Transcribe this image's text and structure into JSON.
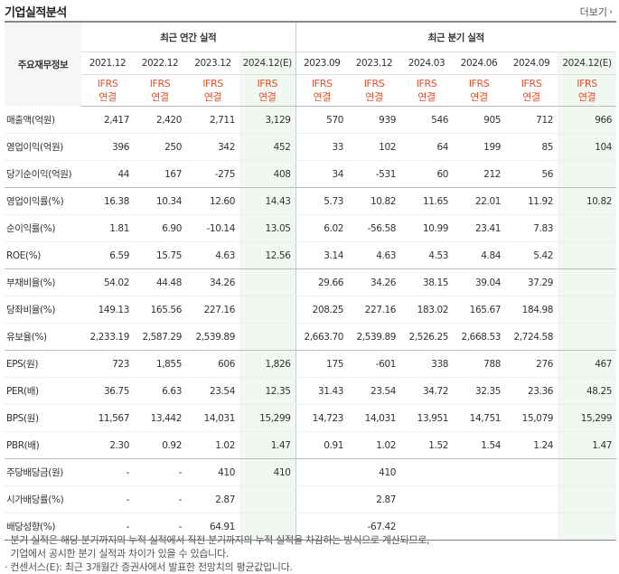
{
  "title": "기업실적분석",
  "more_label": "더보기",
  "header": {
    "row_label": "주요재무정보",
    "annual_group": "최근 연간 실적",
    "quarter_group": "최근 분기 실적",
    "annual_periods": [
      "2021.12",
      "2022.12",
      "2023.12",
      "2024.12(E)"
    ],
    "quarter_periods": [
      "2023.09",
      "2023.12",
      "2024.03",
      "2024.06",
      "2024.09",
      "2024.12(E)"
    ],
    "std_top": "IFRS",
    "std_bottom": "연결"
  },
  "rows": [
    {
      "label": "매출액(억원)",
      "values": [
        "2,417",
        "2,420",
        "2,711",
        "3,129",
        "570",
        "939",
        "546",
        "905",
        "712",
        "966"
      ]
    },
    {
      "label": "영업이익(억원)",
      "values": [
        "396",
        "250",
        "342",
        "452",
        "33",
        "102",
        "64",
        "199",
        "85",
        "104"
      ]
    },
    {
      "label": "당기순이익(억원)",
      "values": [
        "44",
        "167",
        "-275",
        "408",
        "34",
        "-531",
        "60",
        "212",
        "56",
        ""
      ]
    },
    {
      "label": "영업이익률(%)",
      "values": [
        "16.38",
        "10.34",
        "12.60",
        "14.43",
        "5.73",
        "10.82",
        "11.65",
        "22.01",
        "11.92",
        "10.82"
      ]
    },
    {
      "label": "순이익률(%)",
      "values": [
        "1.81",
        "6.90",
        "-10.14",
        "13.05",
        "6.02",
        "-56.58",
        "10.99",
        "23.41",
        "7.83",
        ""
      ]
    },
    {
      "label": "ROE(%)",
      "values": [
        "6.59",
        "15.75",
        "4.63",
        "12.56",
        "3.14",
        "4.63",
        "4.53",
        "4.84",
        "5.42",
        ""
      ]
    },
    {
      "label": "부채비율(%)",
      "values": [
        "54.02",
        "44.48",
        "34.26",
        "",
        "29.66",
        "34.26",
        "38.15",
        "39.04",
        "37.29",
        ""
      ]
    },
    {
      "label": "당좌비율(%)",
      "values": [
        "149.13",
        "165.56",
        "227.16",
        "",
        "208.25",
        "227.16",
        "183.02",
        "165.67",
        "184.98",
        ""
      ]
    },
    {
      "label": "유보율(%)",
      "values": [
        "2,233.19",
        "2,587.29",
        "2,539.89",
        "",
        "2,663.70",
        "2,539.89",
        "2,526.25",
        "2,668.53",
        "2,724.58",
        ""
      ]
    },
    {
      "label": "EPS(원)",
      "values": [
        "723",
        "1,855",
        "606",
        "1,826",
        "175",
        "-601",
        "338",
        "788",
        "276",
        "467"
      ]
    },
    {
      "label": "PER(배)",
      "values": [
        "36.75",
        "6.63",
        "23.54",
        "12.35",
        "31.43",
        "23.54",
        "34.72",
        "32.35",
        "23.36",
        "48.25"
      ]
    },
    {
      "label": "BPS(원)",
      "values": [
        "11,567",
        "13,442",
        "14,031",
        "15,299",
        "14,723",
        "14,031",
        "13,951",
        "14,751",
        "15,079",
        "15,299"
      ]
    },
    {
      "label": "PBR(배)",
      "values": [
        "2.30",
        "0.92",
        "1.02",
        "1.47",
        "0.91",
        "1.02",
        "1.52",
        "1.54",
        "1.24",
        "1.47"
      ]
    },
    {
      "label": "주당배당금(원)",
      "values": [
        "-",
        "-",
        "410",
        "410",
        "",
        "410",
        "",
        "",
        "",
        ""
      ]
    },
    {
      "label": "시가배당률(%)",
      "values": [
        "-",
        "-",
        "2.87",
        "",
        "",
        "2.87",
        "",
        "",
        "",
        ""
      ]
    },
    {
      "label": "배당성향(%)",
      "values": [
        "-",
        "-",
        "64.91",
        "",
        "",
        "-67.42",
        "",
        "",
        "",
        ""
      ]
    }
  ],
  "notes": [
    "· 분기 실적은 해당 분기까지의 누적 실적에서 직전 분기까지의 누적 실적을 차감하는 방식으로 계산되므로,",
    "  기업에서 공시한 분기 실적과 차이가 있을 수 있습니다.",
    "· 컨센서스(E): 최근 3개월간 증권사에서 발표한 전망치의 평균값입니다."
  ]
}
